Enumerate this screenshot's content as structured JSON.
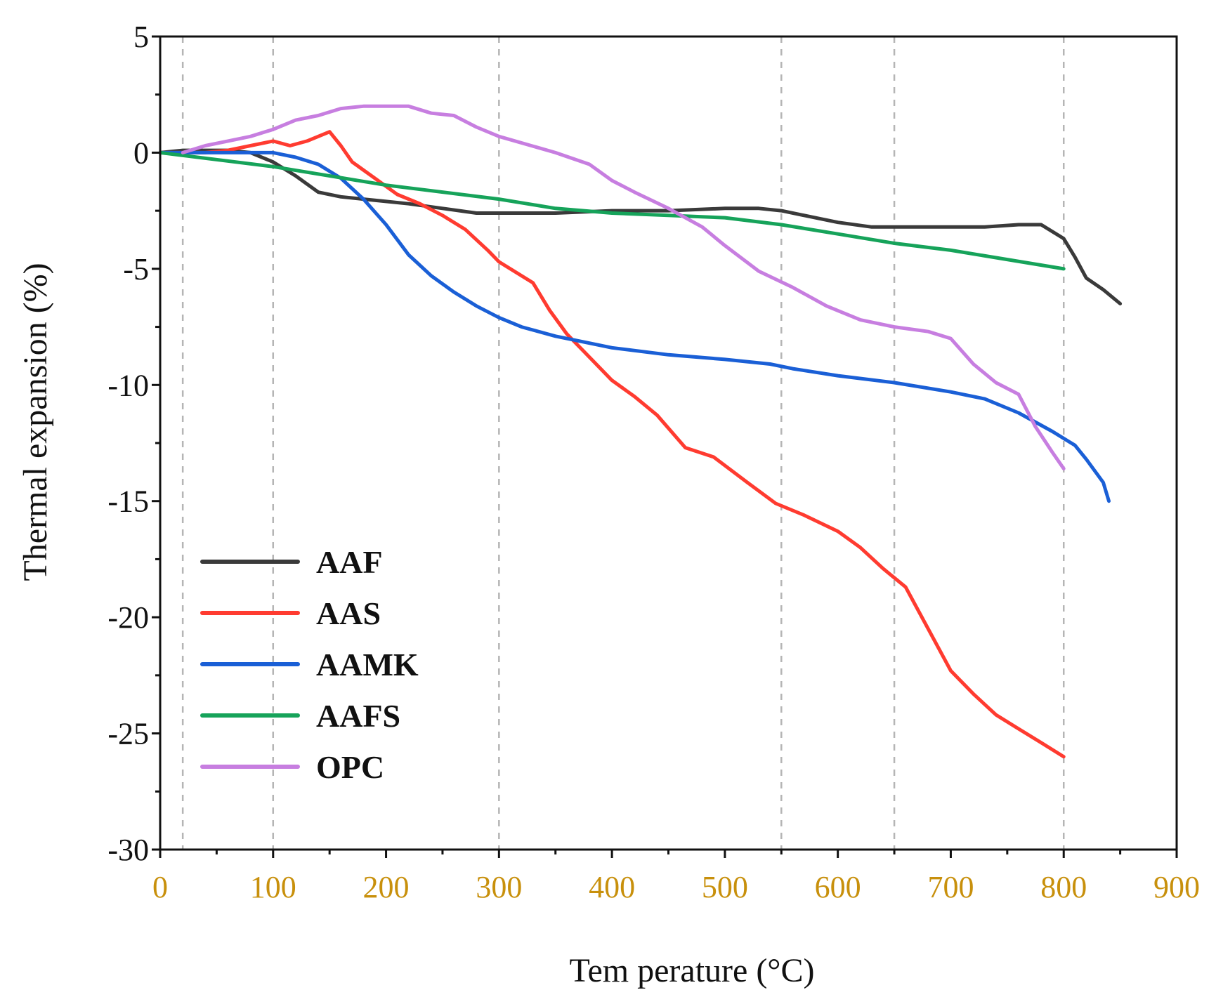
{
  "chart_data": {
    "type": "line",
    "title": "",
    "xlabel": "Tem perature (°C)",
    "ylabel": "Thermal expansion (%)",
    "xlim": [
      0,
      900
    ],
    "ylim": [
      -30,
      5
    ],
    "x_ticks": [
      0,
      100,
      200,
      300,
      400,
      500,
      600,
      700,
      800,
      900
    ],
    "y_ticks": [
      5,
      0,
      -5,
      -10,
      -15,
      -20,
      -25,
      -30
    ],
    "reference_lines_x": [
      20,
      100,
      300,
      550,
      650,
      800
    ],
    "legend_position": "bottom-left",
    "series": [
      {
        "name": "AAF",
        "color": "#3a3a3a",
        "points": [
          [
            0,
            0
          ],
          [
            20,
            0.1
          ],
          [
            40,
            0.1
          ],
          [
            60,
            0.1
          ],
          [
            80,
            0
          ],
          [
            100,
            -0.4
          ],
          [
            120,
            -1
          ],
          [
            140,
            -1.7
          ],
          [
            160,
            -1.9
          ],
          [
            180,
            -2
          ],
          [
            200,
            -2.1
          ],
          [
            220,
            -2.2
          ],
          [
            250,
            -2.4
          ],
          [
            280,
            -2.6
          ],
          [
            300,
            -2.6
          ],
          [
            350,
            -2.6
          ],
          [
            400,
            -2.5
          ],
          [
            450,
            -2.5
          ],
          [
            500,
            -2.4
          ],
          [
            530,
            -2.4
          ],
          [
            550,
            -2.5
          ],
          [
            580,
            -2.8
          ],
          [
            600,
            -3
          ],
          [
            630,
            -3.2
          ],
          [
            650,
            -3.2
          ],
          [
            680,
            -3.2
          ],
          [
            700,
            -3.2
          ],
          [
            730,
            -3.2
          ],
          [
            760,
            -3.1
          ],
          [
            780,
            -3.1
          ],
          [
            800,
            -3.7
          ],
          [
            810,
            -4.5
          ],
          [
            820,
            -5.4
          ],
          [
            835,
            -5.9
          ],
          [
            850,
            -6.5
          ]
        ]
      },
      {
        "name": "AAS",
        "color": "#ff3b30",
        "points": [
          [
            0,
            0
          ],
          [
            20,
            0
          ],
          [
            40,
            0
          ],
          [
            60,
            0.1
          ],
          [
            80,
            0.3
          ],
          [
            100,
            0.5
          ],
          [
            115,
            0.3
          ],
          [
            130,
            0.5
          ],
          [
            150,
            0.9
          ],
          [
            160,
            0.3
          ],
          [
            170,
            -0.4
          ],
          [
            190,
            -1.1
          ],
          [
            210,
            -1.8
          ],
          [
            230,
            -2.2
          ],
          [
            250,
            -2.7
          ],
          [
            270,
            -3.3
          ],
          [
            290,
            -4.2
          ],
          [
            300,
            -4.7
          ],
          [
            330,
            -5.6
          ],
          [
            345,
            -6.8
          ],
          [
            360,
            -7.8
          ],
          [
            380,
            -8.8
          ],
          [
            400,
            -9.8
          ],
          [
            420,
            -10.5
          ],
          [
            440,
            -11.3
          ],
          [
            465,
            -12.7
          ],
          [
            490,
            -13.1
          ],
          [
            520,
            -14.2
          ],
          [
            545,
            -15.1
          ],
          [
            570,
            -15.6
          ],
          [
            600,
            -16.3
          ],
          [
            620,
            -17
          ],
          [
            640,
            -17.9
          ],
          [
            660,
            -18.7
          ],
          [
            680,
            -20.5
          ],
          [
            700,
            -22.3
          ],
          [
            720,
            -23.3
          ],
          [
            740,
            -24.2
          ],
          [
            760,
            -24.8
          ],
          [
            780,
            -25.4
          ],
          [
            800,
            -26
          ]
        ]
      },
      {
        "name": "AAMK",
        "color": "#1a5fd6",
        "points": [
          [
            0,
            0
          ],
          [
            20,
            0
          ],
          [
            40,
            0
          ],
          [
            60,
            0
          ],
          [
            80,
            0
          ],
          [
            100,
            0
          ],
          [
            120,
            -0.2
          ],
          [
            140,
            -0.5
          ],
          [
            160,
            -1.1
          ],
          [
            180,
            -2
          ],
          [
            200,
            -3.1
          ],
          [
            220,
            -4.4
          ],
          [
            240,
            -5.3
          ],
          [
            260,
            -6
          ],
          [
            280,
            -6.6
          ],
          [
            300,
            -7.1
          ],
          [
            320,
            -7.5
          ],
          [
            350,
            -7.9
          ],
          [
            380,
            -8.2
          ],
          [
            400,
            -8.4
          ],
          [
            450,
            -8.7
          ],
          [
            500,
            -8.9
          ],
          [
            540,
            -9.1
          ],
          [
            560,
            -9.3
          ],
          [
            600,
            -9.6
          ],
          [
            650,
            -9.9
          ],
          [
            700,
            -10.3
          ],
          [
            730,
            -10.6
          ],
          [
            760,
            -11.2
          ],
          [
            790,
            -12
          ],
          [
            810,
            -12.6
          ],
          [
            820,
            -13.2
          ],
          [
            835,
            -14.2
          ],
          [
            840,
            -15
          ]
        ]
      },
      {
        "name": "AAFS",
        "color": "#16a35a",
        "points": [
          [
            0,
            0
          ],
          [
            100,
            -0.6
          ],
          [
            200,
            -1.4
          ],
          [
            300,
            -2
          ],
          [
            350,
            -2.4
          ],
          [
            400,
            -2.6
          ],
          [
            450,
            -2.7
          ],
          [
            500,
            -2.8
          ],
          [
            550,
            -3.1
          ],
          [
            600,
            -3.5
          ],
          [
            650,
            -3.9
          ],
          [
            700,
            -4.2
          ],
          [
            750,
            -4.6
          ],
          [
            800,
            -5
          ]
        ]
      },
      {
        "name": "OPC",
        "color": "#c77ee0",
        "points": [
          [
            20,
            0
          ],
          [
            40,
            0.3
          ],
          [
            60,
            0.5
          ],
          [
            80,
            0.7
          ],
          [
            100,
            1
          ],
          [
            120,
            1.4
          ],
          [
            140,
            1.6
          ],
          [
            160,
            1.9
          ],
          [
            180,
            2
          ],
          [
            200,
            2
          ],
          [
            220,
            2
          ],
          [
            240,
            1.7
          ],
          [
            260,
            1.6
          ],
          [
            280,
            1.1
          ],
          [
            300,
            0.7
          ],
          [
            350,
            0
          ],
          [
            380,
            -0.5
          ],
          [
            400,
            -1.2
          ],
          [
            420,
            -1.7
          ],
          [
            450,
            -2.4
          ],
          [
            480,
            -3.2
          ],
          [
            500,
            -4
          ],
          [
            530,
            -5.1
          ],
          [
            560,
            -5.8
          ],
          [
            590,
            -6.6
          ],
          [
            620,
            -7.2
          ],
          [
            650,
            -7.5
          ],
          [
            680,
            -7.7
          ],
          [
            700,
            -8
          ],
          [
            720,
            -9.1
          ],
          [
            740,
            -9.9
          ],
          [
            760,
            -10.4
          ],
          [
            775,
            -11.8
          ],
          [
            790,
            -12.9
          ],
          [
            800,
            -13.6
          ]
        ]
      }
    ]
  }
}
